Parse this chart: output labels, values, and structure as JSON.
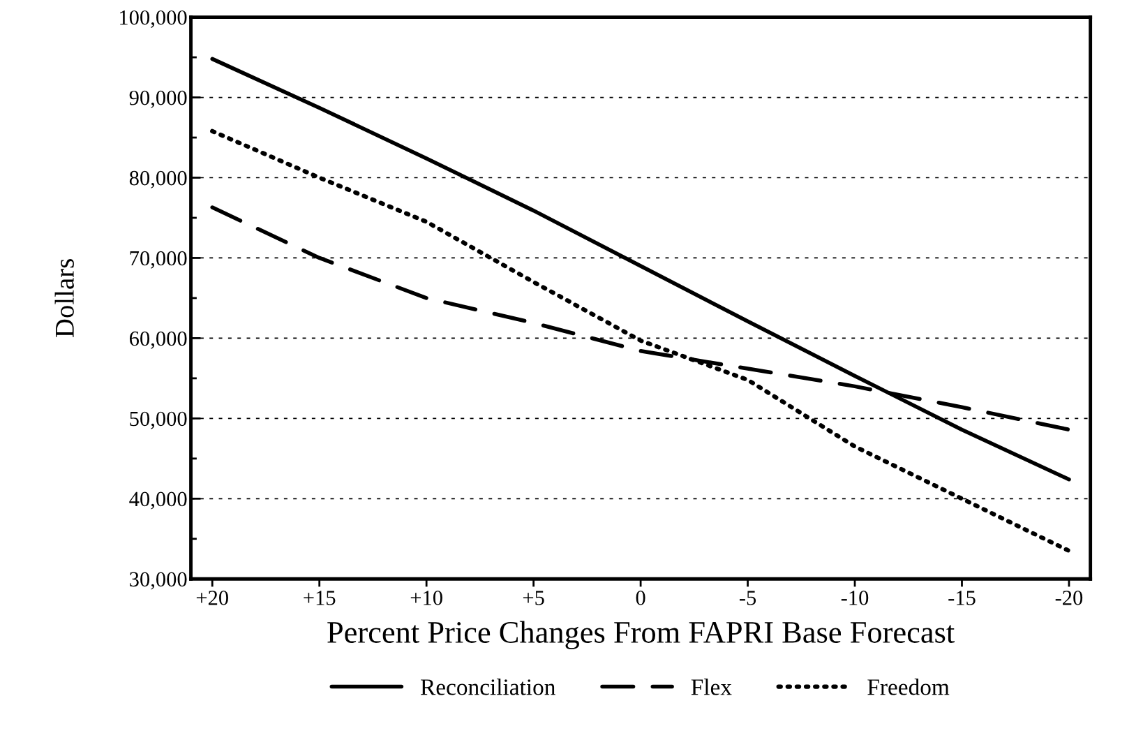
{
  "chart_data": {
    "type": "line",
    "xlabel": "Percent Price Changes From FAPRI Base Forecast",
    "ylabel": "Dollars",
    "x": [
      20,
      15,
      10,
      5,
      0,
      -5,
      -10,
      -15,
      -20
    ],
    "series": [
      {
        "name": "Reconciliation",
        "color": "#000000",
        "line_style": "solid",
        "values": [
          94800,
          88700,
          82400,
          75900,
          69000,
          62100,
          55300,
          48600,
          42400
        ]
      },
      {
        "name": "Flex",
        "color": "#000000",
        "line_style": "dashed",
        "values": [
          76300,
          70000,
          65000,
          61900,
          58400,
          56200,
          54000,
          51400,
          48600
        ]
      },
      {
        "name": "Freedom",
        "color": "#000000",
        "line_style": "dotted",
        "values": [
          85800,
          80000,
          74500,
          67000,
          59700,
          54800,
          46500,
          40000,
          33500
        ]
      }
    ],
    "xlim": [
      21,
      -21
    ],
    "xticks": [
      {
        "value": 20,
        "label": "+20"
      },
      {
        "value": 15,
        "label": "+15"
      },
      {
        "value": 10,
        "label": "+10"
      },
      {
        "value": 5,
        "label": "+5"
      },
      0,
      -5,
      -10,
      -15,
      -20
    ],
    "ylim": [
      30000,
      100000
    ],
    "yticks": [
      {
        "value": 30000,
        "label": "30,000"
      },
      {
        "value": 40000,
        "label": "40,000"
      },
      {
        "value": 50000,
        "label": "50,000"
      },
      {
        "value": 60000,
        "label": "60,000"
      },
      {
        "value": 70000,
        "label": "70,000"
      },
      {
        "value": 80000,
        "label": "80,000"
      },
      {
        "value": 90000,
        "label": "90,000"
      },
      {
        "value": 100000,
        "label": "100,000"
      }
    ],
    "grid": "y",
    "legend": "bottom",
    "marker": "none"
  }
}
